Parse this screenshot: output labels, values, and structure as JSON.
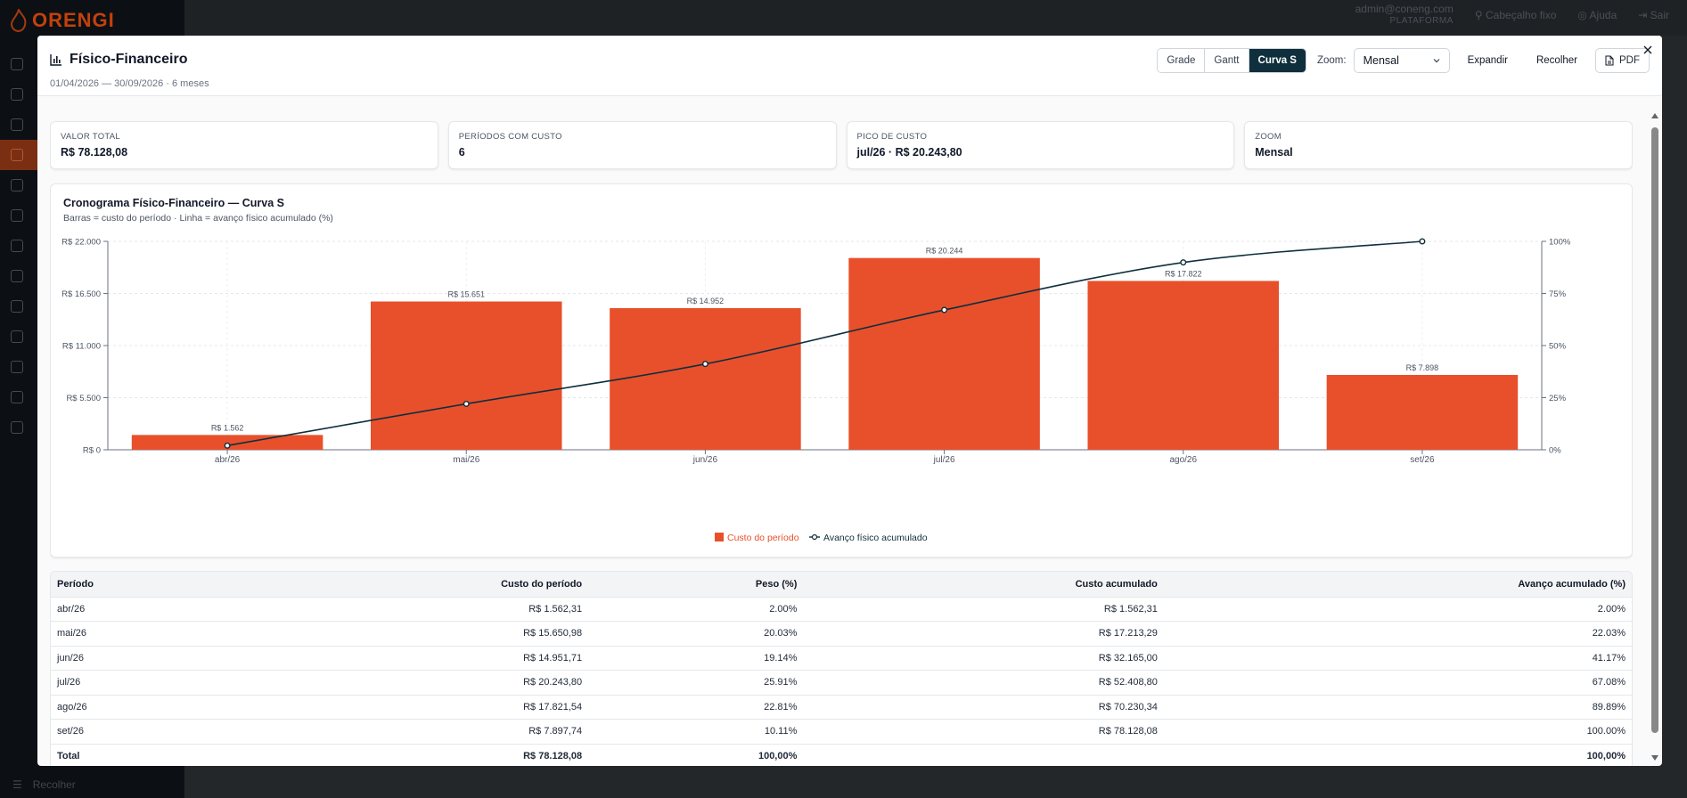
{
  "background": {
    "logo": "ORENGI",
    "user_email": "admin@coneng.com",
    "user_role": "PLATAFORMA",
    "fixed_header": "Cabeçalho fixo",
    "help": "Ajuda",
    "logout": "Sair",
    "collapse": "Recolher"
  },
  "modal": {
    "title": "Físico-Financeiro",
    "subtitle": "01/04/2026 — 30/09/2026 · 6 meses",
    "tabs": [
      "Grade",
      "Gantt",
      "Curva S"
    ],
    "active_tab": "Curva S",
    "zoom_label": "Zoom:",
    "zoom_value": "Mensal",
    "expand": "Expandir",
    "collapse": "Recolher",
    "pdf": "PDF"
  },
  "kpis": [
    {
      "label": "VALOR TOTAL",
      "value": "R$ 78.128,08"
    },
    {
      "label": "PERÍODOS COM CUSTO",
      "value": "6"
    },
    {
      "label": "PICO DE CUSTO",
      "value": "jul/26 · R$ 20.243,80"
    },
    {
      "label": "ZOOM",
      "value": "Mensal"
    }
  ],
  "chart": {
    "title": "Cronograma Físico-Financeiro — Curva S",
    "subtitle": "Barras = custo do período · Linha = avanço físico acumulado (%)"
  },
  "chart_data": {
    "type": "bar",
    "categories": [
      "abr/26",
      "mai/26",
      "jun/26",
      "jul/26",
      "ago/26",
      "set/26"
    ],
    "series": [
      {
        "name": "Custo do período",
        "type": "bar",
        "axis": "left",
        "values": [
          1562,
          15651,
          14952,
          20244,
          17822,
          7898
        ],
        "labels": [
          "R$ 1.562",
          "R$ 15.651",
          "R$ 14.952",
          "R$ 20.244",
          "R$ 17.822",
          "R$ 7.898"
        ],
        "color": "#e8502b"
      },
      {
        "name": "Avanço físico acumulado",
        "type": "line",
        "axis": "right",
        "values": [
          2.0,
          22.03,
          41.17,
          67.08,
          89.89,
          100.0
        ],
        "color": "#0f2f3d"
      }
    ],
    "y_left": {
      "ticks": [
        0,
        5500,
        11000,
        16500,
        22000
      ],
      "tick_labels": [
        "R$ 0",
        "R$ 5.500",
        "R$ 11.000",
        "R$ 16.500",
        "R$ 22.000"
      ],
      "ylim": [
        0,
        22000
      ]
    },
    "y_right": {
      "ticks": [
        0,
        25,
        50,
        75,
        100
      ],
      "tick_labels": [
        "0%",
        "25%",
        "50%",
        "75%",
        "100%"
      ],
      "ylim": [
        0,
        100
      ]
    },
    "grid": true,
    "legend": "bottom-center"
  },
  "table": {
    "headers": [
      "Período",
      "Custo do período",
      "Peso (%)",
      "Custo acumulado",
      "Avanço acumulado (%)"
    ],
    "rows": [
      [
        "abr/26",
        "R$ 1.562,31",
        "2.00%",
        "R$ 1.562,31",
        "2.00%"
      ],
      [
        "mai/26",
        "R$ 15.650,98",
        "20.03%",
        "R$ 17.213,29",
        "22.03%"
      ],
      [
        "jun/26",
        "R$ 14.951,71",
        "19.14%",
        "R$ 32.165,00",
        "41.17%"
      ],
      [
        "jul/26",
        "R$ 20.243,80",
        "25.91%",
        "R$ 52.408,80",
        "67.08%"
      ],
      [
        "ago/26",
        "R$ 17.821,54",
        "22.81%",
        "R$ 70.230,34",
        "89.89%"
      ],
      [
        "set/26",
        "R$ 7.897,74",
        "10.11%",
        "R$ 78.128,08",
        "100.00%"
      ]
    ],
    "total": [
      "Total",
      "R$ 78.128,08",
      "100,00%",
      "",
      "100,00%"
    ]
  }
}
